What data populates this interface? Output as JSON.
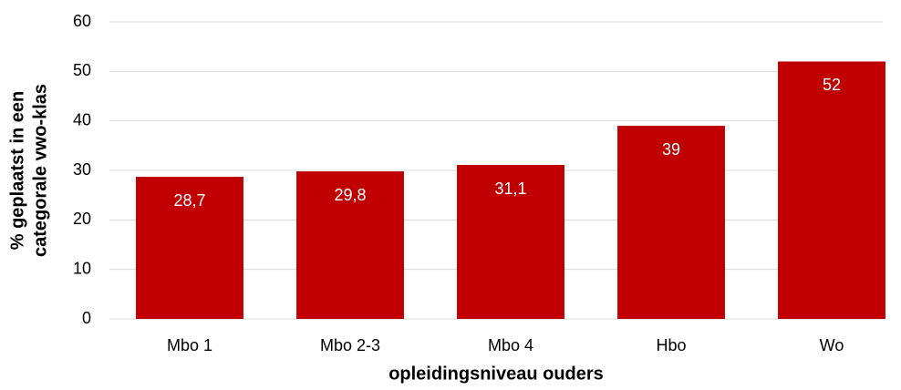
{
  "chart_data": {
    "type": "bar",
    "xlabel": "opleidingsniveau ouders",
    "ylabel": [
      "% geplaatst in een",
      "categorale vwo-klas"
    ],
    "categories": [
      "Mbo 1",
      "Mbo 2-3",
      "Mbo 4",
      "Hbo",
      "Wo"
    ],
    "values": [
      28.7,
      29.8,
      31.1,
      39,
      52
    ],
    "value_labels": [
      "28,7",
      "29,8",
      "31,1",
      "39",
      "52"
    ],
    "color": "#c00000",
    "ylim": [
      0,
      60
    ],
    "yticks": [
      0,
      10,
      20,
      30,
      40,
      50,
      60
    ],
    "grid": true
  }
}
